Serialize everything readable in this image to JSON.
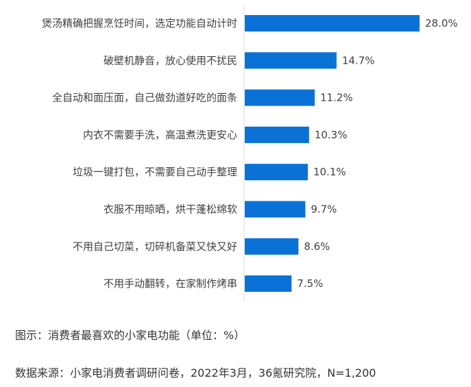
{
  "chart_data": {
    "type": "bar",
    "orientation": "horizontal",
    "categories": [
      "煲汤精确把握烹饪时间，选定功能自动计时",
      "破壁机静音，放心使用不扰民",
      "全自动和面压面，自己做劲道好吃的面条",
      "内衣不需要手洗，高温煮洗更安心",
      "垃圾一键打包，不需要自己动手整理",
      "衣服不用晾晒，烘干蓬松绵软",
      "不用自己切菜，切碎机备菜又快又好",
      "不用手动翻转，在家制作烤串"
    ],
    "values": [
      28.0,
      14.7,
      11.2,
      10.3,
      10.1,
      9.7,
      8.6,
      7.5
    ],
    "value_labels": [
      "28.0%",
      "14.7%",
      "11.2%",
      "10.3%",
      "10.1%",
      "9.7%",
      "8.6%",
      "7.5%"
    ],
    "xlim": [
      0,
      28.0
    ],
    "grid": false,
    "legend": "none",
    "color": "#0a72d6"
  },
  "caption": {
    "title": "图示：消费者最喜欢的小家电功能（单位：%）",
    "source": "数据来源：小家电消费者调研问卷，2022年3月，36氪研究院，N=1,200"
  }
}
